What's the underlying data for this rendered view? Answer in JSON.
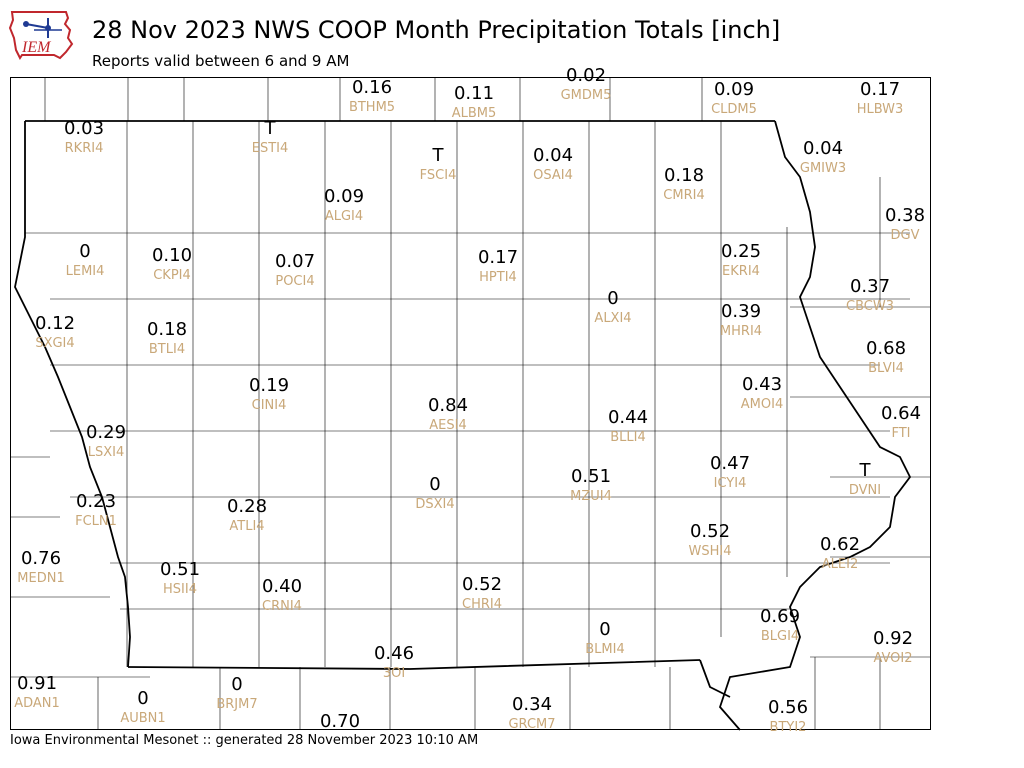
{
  "header": {
    "logo_text": "IEM",
    "title": "28 Nov 2023 NWS COOP Month Precipitation Totals [inch]",
    "subtitle": "Reports valid between 6 and 9 AM"
  },
  "footer": {
    "text": "Iowa Environmental Mesonet :: generated 28 November 2023 10:10 AM"
  },
  "colors": {
    "value_text": "#000000",
    "station_text": "#c9a879",
    "county_lines": "#000000",
    "logo_red": "#c0272d",
    "logo_blue": "#1f3a93"
  },
  "stations": [
    {
      "id": "BTHM5",
      "value": "0.16"
    },
    {
      "id": "ALBM5",
      "value": "0.11"
    },
    {
      "id": "GMDM5",
      "value": "0.02"
    },
    {
      "id": "CLDM5",
      "value": "0.09"
    },
    {
      "id": "HLBW3",
      "value": "0.17"
    },
    {
      "id": "RKRI4",
      "value": "0.03"
    },
    {
      "id": "ESTI4",
      "value": "T"
    },
    {
      "id": "FSCI4",
      "value": "T"
    },
    {
      "id": "OSAI4",
      "value": "0.04"
    },
    {
      "id": "GMIW3",
      "value": "0.04"
    },
    {
      "id": "CMRI4",
      "value": "0.18"
    },
    {
      "id": "ALGI4",
      "value": "0.09"
    },
    {
      "id": "DGV",
      "value": "0.38"
    },
    {
      "id": "LEMI4",
      "value": "0"
    },
    {
      "id": "CKPI4",
      "value": "0.10"
    },
    {
      "id": "POCI4",
      "value": "0.07"
    },
    {
      "id": "HPTI4",
      "value": "0.17"
    },
    {
      "id": "EKRI4",
      "value": "0.25"
    },
    {
      "id": "CBCW3",
      "value": "0.37"
    },
    {
      "id": "ALXI4",
      "value": "0"
    },
    {
      "id": "SXGI4",
      "value": "0.12"
    },
    {
      "id": "BTLI4",
      "value": "0.18"
    },
    {
      "id": "MHRI4",
      "value": "0.39"
    },
    {
      "id": "BLVI4",
      "value": "0.68"
    },
    {
      "id": "CINI4",
      "value": "0.19"
    },
    {
      "id": "AMOI4",
      "value": "0.43"
    },
    {
      "id": "AESI4",
      "value": "0.84"
    },
    {
      "id": "FTI",
      "value": "0.64"
    },
    {
      "id": "BLLI4",
      "value": "0.44"
    },
    {
      "id": "LSXI4",
      "value": "0.29"
    },
    {
      "id": "ICYI4",
      "value": "0.47"
    },
    {
      "id": "DVNI",
      "value": "T"
    },
    {
      "id": "DSXI4",
      "value": "0"
    },
    {
      "id": "MZUI4",
      "value": "0.51"
    },
    {
      "id": "FCLN1",
      "value": "0.23"
    },
    {
      "id": "ATLI4",
      "value": "0.28"
    },
    {
      "id": "WSHI4",
      "value": "0.52"
    },
    {
      "id": "ALEI2",
      "value": "0.62"
    },
    {
      "id": "MEDN1",
      "value": "0.76"
    },
    {
      "id": "HSII4",
      "value": "0.51"
    },
    {
      "id": "CRNI4",
      "value": "0.40"
    },
    {
      "id": "CHRI4",
      "value": "0.52"
    },
    {
      "id": "BLMI4",
      "value": "0"
    },
    {
      "id": "BLGI4",
      "value": "0.69"
    },
    {
      "id": "AVOI2",
      "value": "0.92"
    },
    {
      "id": "3OI",
      "value": "0.46"
    },
    {
      "id": "ADAN1",
      "value": "0.91"
    },
    {
      "id": "AUBN1",
      "value": "0"
    },
    {
      "id": "BRJM7",
      "value": "0"
    },
    {
      "id": "GRCM7",
      "value": "0.34"
    },
    {
      "id": "BTYI2",
      "value": "0.56"
    },
    {
      "id": "",
      "value": "0.70"
    }
  ]
}
